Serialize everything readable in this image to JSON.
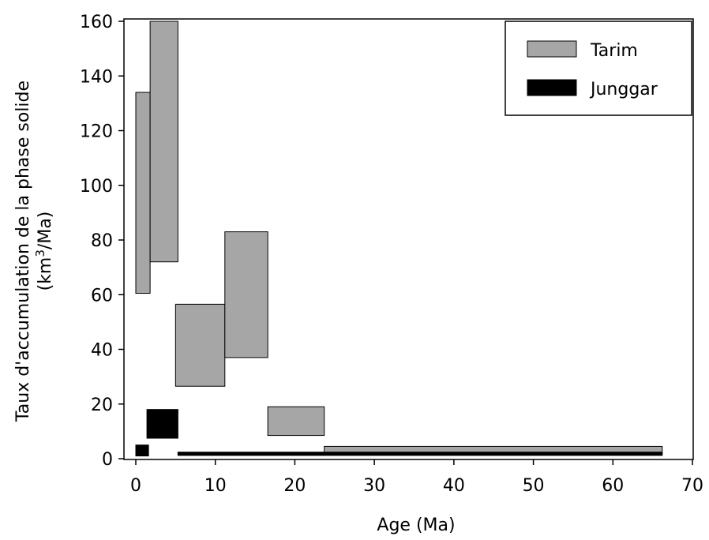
{
  "chart_data": {
    "type": "bar",
    "title": "",
    "xlabel": "Age (Ma)",
    "ylabel_line1": "Taux d'accumulation de la phase solide",
    "ylabel_line2_prefix": "(km",
    "ylabel_line2_sup": "3",
    "ylabel_line2_suffix": "/Ma)",
    "xlim": [
      0,
      70
    ],
    "ylim": [
      0,
      160
    ],
    "xticks": [
      "0",
      "10",
      "20",
      "30",
      "40",
      "50",
      "60",
      "70"
    ],
    "yticks": [
      "0",
      "20",
      "40",
      "60",
      "80",
      "100",
      "120",
      "140",
      "160"
    ],
    "grid": false,
    "legend_position": "top-right",
    "series": [
      {
        "name": "Tarim",
        "color": "#a6a6a6",
        "boxes": [
          {
            "x0": 0,
            "x1": 1.8,
            "y0": 60.5,
            "y1": 134
          },
          {
            "x0": 1.8,
            "x1": 5.3,
            "y0": 72,
            "y1": 160
          },
          {
            "x0": 5.0,
            "x1": 11.2,
            "y0": 26.5,
            "y1": 56.5
          },
          {
            "x0": 11.2,
            "x1": 16.6,
            "y0": 37,
            "y1": 83
          },
          {
            "x0": 16.6,
            "x1": 23.7,
            "y0": 8.5,
            "y1": 19
          },
          {
            "x0": 23.7,
            "x1": 66.2,
            "y0": 1.5,
            "y1": 4.5
          }
        ]
      },
      {
        "name": "Junggar",
        "color": "#000000",
        "boxes": [
          {
            "x0": 0,
            "x1": 1.6,
            "y0": 1,
            "y1": 5
          },
          {
            "x0": 1.4,
            "x1": 5.3,
            "y0": 7.5,
            "y1": 18
          },
          {
            "x0": 5.3,
            "x1": 66.2,
            "y0": 1.2,
            "y1": 2.4
          }
        ]
      }
    ]
  }
}
